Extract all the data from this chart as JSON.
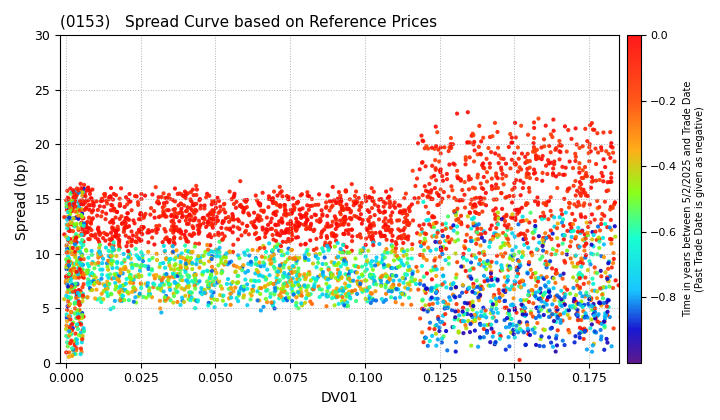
{
  "title": "(0153)   Spread Curve based on Reference Prices",
  "xlabel": "DV01",
  "ylabel": "Spread (bp)",
  "xlim": [
    -0.002,
    0.185
  ],
  "ylim": [
    0,
    30
  ],
  "xticks": [
    0.0,
    0.025,
    0.05,
    0.075,
    0.1,
    0.125,
    0.15,
    0.175
  ],
  "yticks": [
    0,
    5,
    10,
    15,
    20,
    25,
    30
  ],
  "colorbar_label_line1": "Time in years between 5/2/2025 and Trade Date",
  "colorbar_label_line2": "(Past Trade Date is given as negative)",
  "cbar_vmin": -1.0,
  "cbar_vmax": 0.0,
  "cbar_ticks": [
    0.0,
    -0.2,
    -0.4,
    -0.6,
    -0.8
  ],
  "background_color": "#ffffff",
  "grid_color": "#b0b0b0",
  "seed": 42,
  "colormap_colors": [
    [
      0.0,
      "#4b0082"
    ],
    [
      0.1,
      "#0000cd"
    ],
    [
      0.22,
      "#00bfff"
    ],
    [
      0.38,
      "#00ffcc"
    ],
    [
      0.52,
      "#7fff00"
    ],
    [
      0.65,
      "#ffa500"
    ],
    [
      0.8,
      "#ff4500"
    ],
    [
      1.0,
      "#ff0000"
    ]
  ]
}
